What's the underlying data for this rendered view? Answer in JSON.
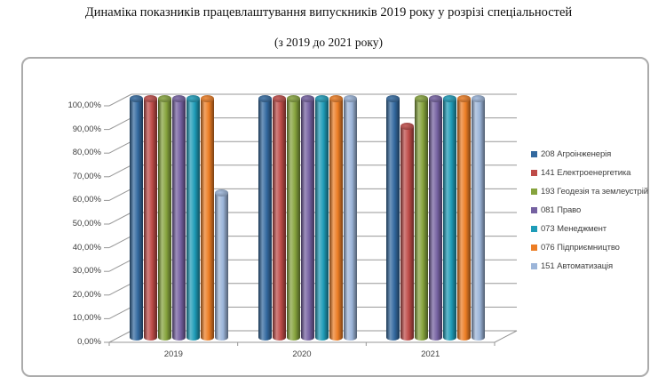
{
  "page": {
    "title": "Динаміка показників працевлаштування випускників 2019 року у розрізі спеціальностей",
    "subtitle": "(з 2019 до 2021 року)"
  },
  "chart_data": {
    "type": "bar",
    "subtype": "3d-cylinder",
    "title": "Динаміка показників працевлаштування випускників 2019 року у розрізі спеціальностей (з 2019 до 2021 року)",
    "categories": [
      "2019",
      "2020",
      "2021"
    ],
    "series": [
      {
        "name": "208 Агроінженерія",
        "color": "#33699F",
        "values": [
          100,
          100,
          100
        ]
      },
      {
        "name": "141 Електроенергетика",
        "color": "#BE4B48",
        "values": [
          100,
          100,
          88.5
        ]
      },
      {
        "name": "193 Геодезія та землеустрій",
        "color": "#86A33D",
        "values": [
          100,
          100,
          100
        ]
      },
      {
        "name": "081 Право",
        "color": "#7561A1",
        "values": [
          100,
          100,
          100
        ]
      },
      {
        "name": "073 Менеджмент",
        "color": "#1E9CB8",
        "values": [
          100,
          100,
          100
        ]
      },
      {
        "name": "076 Підприємництво",
        "color": "#EC7D25",
        "values": [
          100,
          100,
          100
        ]
      },
      {
        "name": "151 Автоматизація",
        "color": "#9CB5D9",
        "values": [
          61,
          100,
          100
        ]
      }
    ],
    "xlabel": "",
    "ylabel": "",
    "ylim": [
      0,
      100
    ],
    "ytick_step": 10,
    "ytick_labels": [
      "0,00%",
      "10,00%",
      "20,00%",
      "30,00%",
      "40,00%",
      "50,00%",
      "60,00%",
      "70,00%",
      "80,00%",
      "90,00%",
      "100,00%"
    ],
    "grid": true,
    "legend_position": "right",
    "gridline_color": "#979797",
    "border_color": "#ababab",
    "text_color": "#3f3f3f"
  }
}
